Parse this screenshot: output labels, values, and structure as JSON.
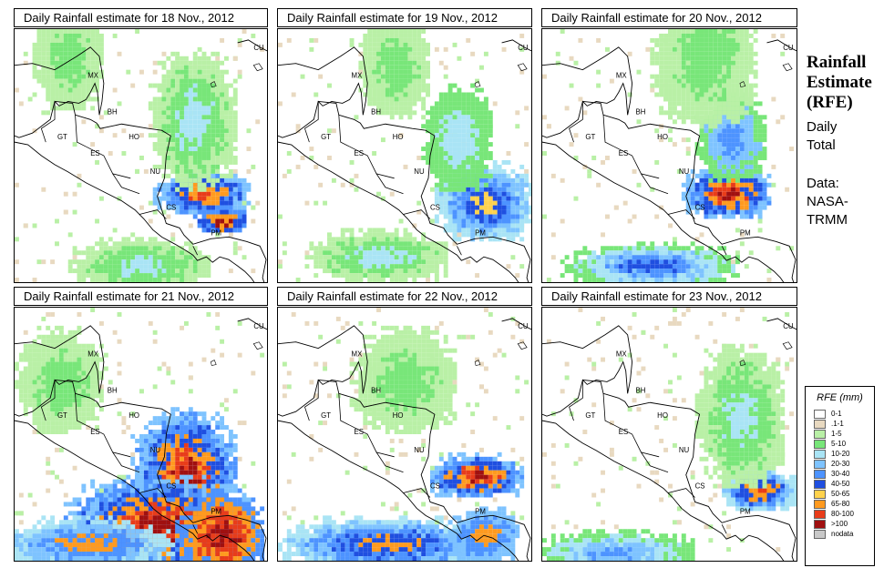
{
  "panels": [
    {
      "title": "Daily Rainfall estimate for  18 Nov., 2012"
    },
    {
      "title": "Daily Rainfall estimate for  19 Nov., 2012"
    },
    {
      "title": "Daily Rainfall estimate for  20 Nov., 2012"
    },
    {
      "title": "Daily Rainfall estimate for  21 Nov., 2012"
    },
    {
      "title": "Daily Rainfall estimate for  22 Nov., 2012"
    },
    {
      "title": "Daily Rainfall estimate for  23 Nov., 2012"
    }
  ],
  "country_labels": [
    "CU",
    "MX",
    "BH",
    "GT",
    "HO",
    "ES",
    "NU",
    "CS",
    "PM"
  ],
  "side": {
    "title_line1": "Rainfall",
    "title_line2": "Estimate",
    "title_line3": "(RFE)",
    "daily_line1": "Daily",
    "daily_line2": "Total",
    "data_line1": "Data:",
    "data_line2": "NASA-",
    "data_line3": "TRMM"
  },
  "legend": {
    "title": "RFE (mm)",
    "items": [
      {
        "label": "0-1",
        "color": "#ffffff"
      },
      {
        "label": ".1-1",
        "color": "#e8d9c0"
      },
      {
        "label": "1-5",
        "color": "#b9f0a6"
      },
      {
        "label": "5-10",
        "color": "#78e679"
      },
      {
        "label": "10-20",
        "color": "#a9e4f5"
      },
      {
        "label": "20-30",
        "color": "#7ec3ff"
      },
      {
        "label": "30-40",
        "color": "#4d93ff"
      },
      {
        "label": "40-50",
        "color": "#1f4fe0"
      },
      {
        "label": "50-65",
        "color": "#ffd24d"
      },
      {
        "label": "65-80",
        "color": "#ff9a1f"
      },
      {
        "label": "80-100",
        "color": "#e83c1a"
      },
      {
        "label": ">100",
        "color": "#a01010"
      },
      {
        "label": "nodata",
        "color": "#c8c8c8"
      }
    ]
  }
}
